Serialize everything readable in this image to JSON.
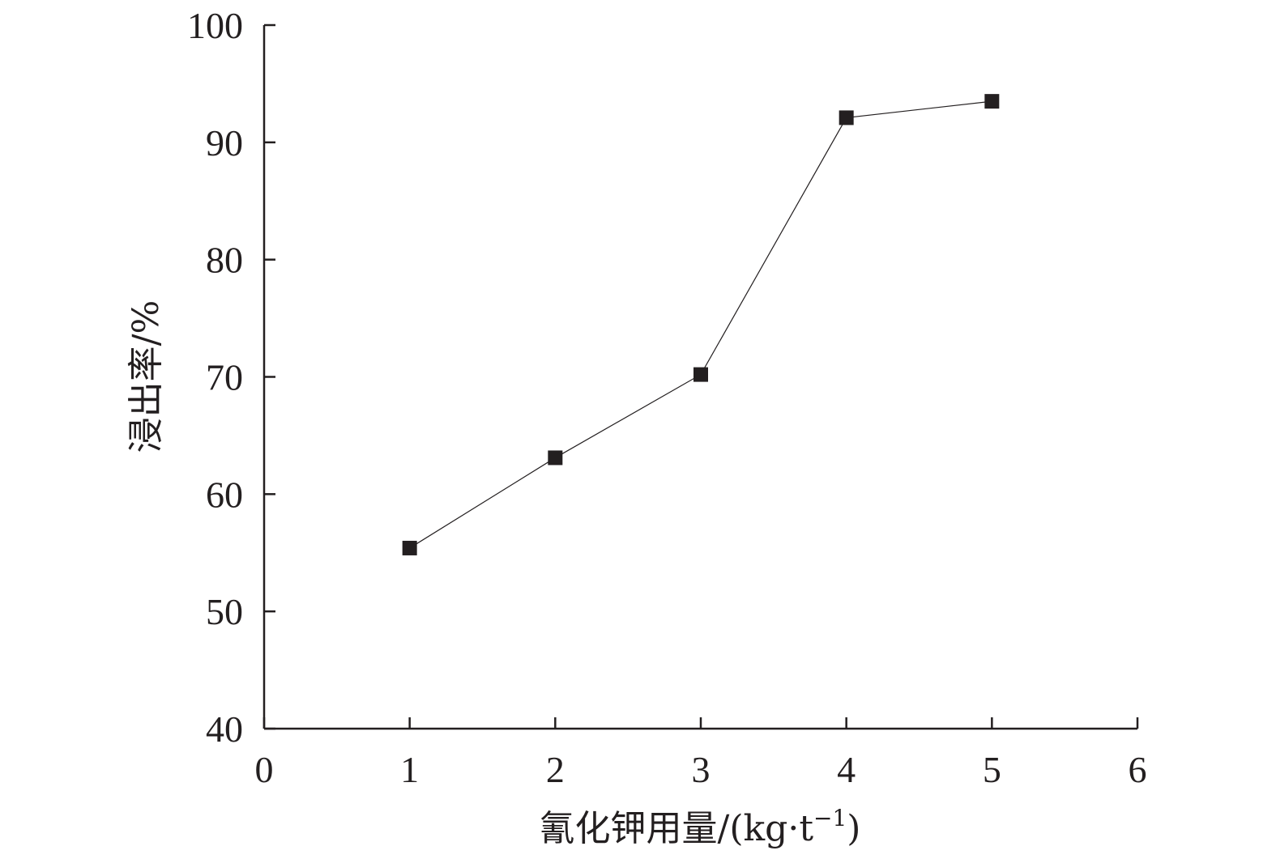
{
  "chart_data": {
    "type": "line",
    "title": "",
    "xlabel_parts": {
      "main": "氰化钾用量/(kg·t",
      "sup": "−1",
      "close": ")"
    },
    "ylabel": "浸出率/%",
    "x_ticks": [
      0,
      1,
      2,
      3,
      4,
      5,
      6
    ],
    "y_ticks": [
      40,
      50,
      60,
      70,
      80,
      90,
      100
    ],
    "xlim": [
      0,
      6
    ],
    "ylim": [
      40,
      100
    ],
    "grid": false,
    "legend": "none",
    "marker": "square",
    "colors": {
      "axis": "#231f20",
      "marker": "#231f20",
      "line": "#231f20"
    },
    "series": [
      {
        "x": [
          1,
          2,
          3,
          4,
          5
        ],
        "values": [
          55.4,
          63.1,
          70.2,
          92.1,
          93.5
        ]
      }
    ]
  }
}
